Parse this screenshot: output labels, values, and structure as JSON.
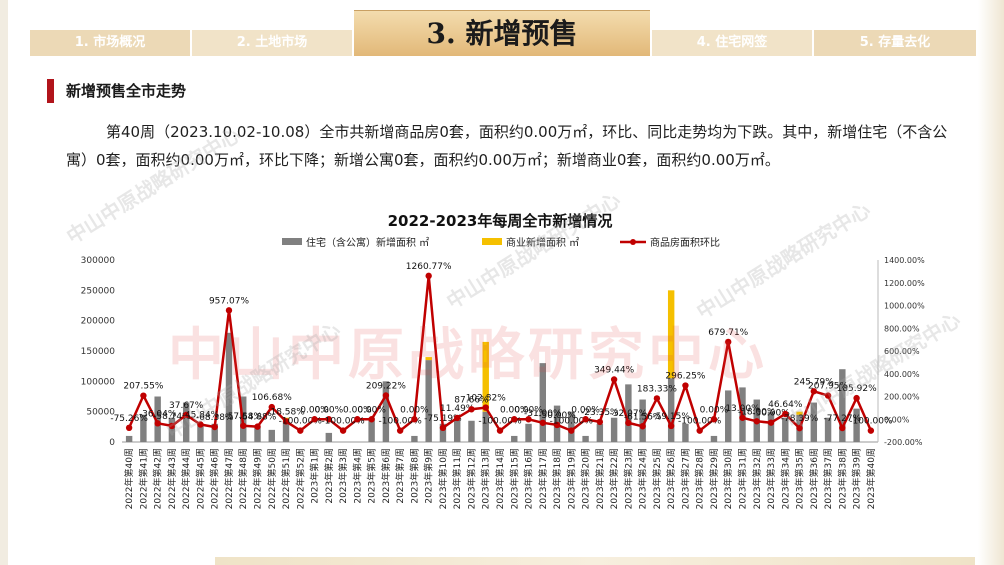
{
  "tabs": [
    {
      "label": "1. 市场概况"
    },
    {
      "label": "2. 土地市场"
    },
    {
      "label": "3. 新增预售"
    },
    {
      "label": "4. 住宅网签"
    },
    {
      "label": "5. 存量去化"
    }
  ],
  "active_tab": 2,
  "section_title": "新增预售全市走势",
  "summary": "第40周（2023.10.02-10.08）全市共新增商品房0套，面积约0.00万㎡，环比、同比走势均为下跌。其中，新增住宅（不含公寓）0套，面积约0.00万㎡，环比下降；新增公寓0套，面积约0.00万㎡；新增商业0套，面积约0.00万㎡。",
  "watermark": "中山中原战略研究中心",
  "colors": {
    "residential": "#808080",
    "commercial": "#f5c000",
    "ratio": "#c00000",
    "accent": "#b1141b",
    "tab": "#ecd9b6"
  },
  "chart_data": {
    "type": "bar",
    "title": "2022-2023年每周全市新增情况",
    "legend_position": "top",
    "grid": false,
    "categories": [
      "2022年第40周",
      "2022年第41周",
      "2022年第42周",
      "2022年第43周",
      "2022年第44周",
      "2022年第45周",
      "2022年第46周",
      "2022年第47周",
      "2022年第48周",
      "2022年第49周",
      "2022年第50周",
      "2022年第51周",
      "2022年第52周",
      "2023年第1周",
      "2023年第2周",
      "2023年第3周",
      "2023年第4周",
      "2023年第5周",
      "2023年第6周",
      "2023年第7周",
      "2023年第8周",
      "2023年第9周",
      "2023年第10周",
      "2023年第11周",
      "2023年第12周",
      "2023年第13周",
      "2023年第14周",
      "2023年第15周",
      "2023年第16周",
      "2023年第17周",
      "2023年第18周",
      "2023年第19周",
      "2023年第20周",
      "2023年第21周",
      "2023年第22周",
      "2023年第23周",
      "2023年第24周",
      "2023年第25周",
      "2023年第26周",
      "2023年第27周",
      "2023年第28周",
      "2023年第29周",
      "2023年第30周",
      "2023年第31周",
      "2023年第32周",
      "2023年第33周",
      "2023年第34周",
      "2023年第35周",
      "2023年第36周",
      "2023年第37周",
      "2023年第38周",
      "2023年第39周",
      "2023年第40周"
    ],
    "series": [
      {
        "name": "住宅（含公寓）新增面积 ㎡",
        "axis": "left",
        "kind": "bar",
        "values": [
          10000,
          45000,
          75000,
          40000,
          65000,
          30000,
          30000,
          180000,
          75000,
          25000,
          20000,
          35000,
          0,
          0,
          15000,
          0,
          0,
          40000,
          100000,
          0,
          10000,
          135000,
          30000,
          35000,
          35000,
          50000,
          0,
          10000,
          30000,
          130000,
          60000,
          50000,
          10000,
          30000,
          40000,
          95000,
          70000,
          0,
          105000,
          30000,
          0,
          10000,
          85000,
          90000,
          70000,
          50000,
          40000,
          45000,
          65000,
          40000,
          120000,
          55000,
          0
        ]
      },
      {
        "name": "商业新增面积 ㎡",
        "axis": "left",
        "kind": "bar",
        "values": [
          0,
          0,
          0,
          0,
          0,
          0,
          0,
          0,
          0,
          0,
          0,
          5000,
          0,
          0,
          0,
          0,
          0,
          0,
          0,
          0,
          0,
          5000,
          0,
          0,
          0,
          115000,
          0,
          0,
          0,
          0,
          0,
          0,
          0,
          0,
          0,
          0,
          0,
          0,
          145000,
          0,
          0,
          0,
          0,
          0,
          0,
          0,
          0,
          5000,
          0,
          0,
          0,
          0,
          0
        ]
      },
      {
        "name": "商品房面积环比",
        "axis": "right",
        "kind": "line",
        "values": [
          -75.26,
          207.55,
          -36.04,
          -58.74,
          37.67,
          -45.84,
          -68.38,
          957.07,
          -57.58,
          -64.88,
          106.68,
          -18.58,
          -100,
          0,
          0,
          -100,
          0,
          0,
          209.22,
          -100,
          0,
          1260.77,
          -75.19,
          11.49,
          87.66,
          102.82,
          -100,
          0,
          0,
          -31,
          -50,
          -100,
          0,
          -23.35,
          349.44,
          -32.07,
          -61.56,
          183.33,
          -59.15,
          296.25,
          -100,
          0,
          679.71,
          13,
          -18,
          -30,
          46.64,
          -78.39,
          245.79,
          207.95,
          -77.27,
          185.92,
          -100
        ]
      }
    ],
    "data_labels": [
      "-75.26%",
      "207.55%",
      "-36.04%",
      "-58.74%",
      "37.67%",
      "-45.84%",
      "-68.38%",
      "957.07%",
      "-57.58%",
      "-64.88%",
      "106.68%",
      "-18.58%",
      "-100.00%",
      "0.00%",
      "0.00%",
      "-100.00%",
      "0.00%",
      "0.00%",
      "209.22%",
      "-100.00%",
      "0.00%",
      "1260.77%",
      "-75.19%",
      "11.49%",
      "87.66%",
      "102.82%",
      "-100.00%",
      "0.00%",
      "0.00%",
      "-31.00%",
      "-50.00%",
      "-100.00%",
      "0.00%",
      "-23.35%",
      "349.44%",
      "-32.07%",
      "-61.56%",
      "183.33%",
      "-59.15%",
      "296.25%",
      "-100.00%",
      "0.00%",
      "679.71%",
      "13.00%",
      "-18.00%",
      "-30.00%",
      "46.64%",
      "-78.39%",
      "245.79%",
      "207.95%",
      "-77.27%",
      "185.92%",
      "-100.00%"
    ],
    "y_left": {
      "min": 0,
      "max": 300000,
      "ticks": [
        "0",
        "50000",
        "100000",
        "150000",
        "200000",
        "250000",
        "300000"
      ]
    },
    "y_right": {
      "min": -200,
      "max": 1400,
      "ticks": [
        "-200.00%",
        "0.00%",
        "200.00%",
        "400.00%",
        "600.00%",
        "800.00%",
        "1000.00%",
        "1200.00%",
        "1400.00%"
      ]
    }
  }
}
